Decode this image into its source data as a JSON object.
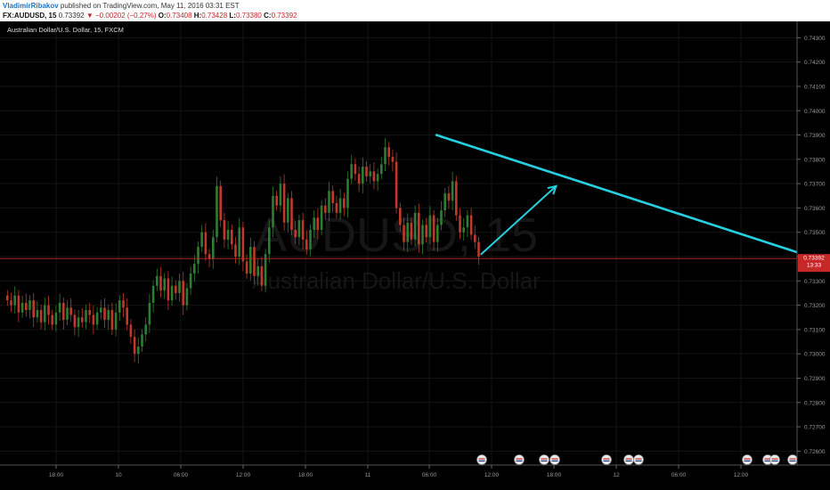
{
  "header": {
    "author": "VladimirRibakov",
    "published": "published on TradingView.com, May 11, 2016 03:31 EST",
    "symbol": "FX:AUDUSD, 15",
    "price": "0.73392",
    "change_arrow": "▼",
    "change": "−0.00202 (−0.27%)",
    "o_label": "O:",
    "o_val": "0.73408",
    "h_label": "H:",
    "h_val": "0.73428",
    "l_label": "L:",
    "l_val": "0.73380",
    "c_label": "C:",
    "c_val": "0.73392"
  },
  "chart_title": "Australian Dollar/U.S. Dollar, 15, FXCM",
  "watermark": {
    "line1": "AUDUSD, 15",
    "line2": "Australian Dollar/U.S. Dollar"
  },
  "price_tag": {
    "price": "0.73392",
    "countdown": "13:33"
  },
  "colors": {
    "up": "#2e7d32",
    "down": "#c0392b",
    "trendline": "#26d0e0",
    "price_line": "#c62828",
    "axis_text": "#9a9a9a"
  },
  "chart_data": {
    "type": "candlestick",
    "title": "Australian Dollar/U.S. Dollar, 15, FXCM",
    "ylim": [
      0.7255,
      0.7436
    ],
    "y_ticks": [
      "0.74300",
      "0.74200",
      "0.74100",
      "0.74000",
      "0.73900",
      "0.73800",
      "0.73700",
      "0.73600",
      "0.73500",
      "0.73400",
      "0.73300",
      "0.73200",
      "0.73100",
      "0.73000",
      "0.72900",
      "0.72800",
      "0.72700",
      "0.72600"
    ],
    "x_ticks": [
      "18:00",
      "10",
      "06:00",
      "12:00",
      "18:00",
      "11",
      "06:00",
      "12:00",
      "18:00",
      "12",
      "06:00",
      "12:00"
    ],
    "last_price": 0.73392,
    "series_close": [
      0.7322,
      0.732,
      0.7324,
      0.7317,
      0.7321,
      0.7318,
      0.7322,
      0.7315,
      0.7318,
      0.7313,
      0.732,
      0.7316,
      0.7312,
      0.7317,
      0.7321,
      0.7314,
      0.7319,
      0.7316,
      0.7311,
      0.7315,
      0.7313,
      0.7318,
      0.7316,
      0.7312,
      0.7317,
      0.7319,
      0.7314,
      0.7318,
      0.731,
      0.7317,
      0.7322,
      0.7319,
      0.7312,
      0.7307,
      0.73,
      0.7303,
      0.7308,
      0.7312,
      0.7321,
      0.7328,
      0.7332,
      0.7326,
      0.7331,
      0.7322,
      0.7328,
      0.7325,
      0.733,
      0.732,
      0.7327,
      0.7333,
      0.7337,
      0.7344,
      0.735,
      0.7341,
      0.7339,
      0.7348,
      0.7369,
      0.7355,
      0.7347,
      0.7351,
      0.7345,
      0.734,
      0.7352,
      0.7338,
      0.7333,
      0.7344,
      0.7332,
      0.7336,
      0.7328,
      0.7341,
      0.7352,
      0.7365,
      0.7361,
      0.737,
      0.7354,
      0.7364,
      0.7351,
      0.7348,
      0.7355,
      0.7347,
      0.7343,
      0.7351,
      0.7356,
      0.7351,
      0.7361,
      0.7358,
      0.7367,
      0.7362,
      0.7358,
      0.7364,
      0.736,
      0.7372,
      0.7378,
      0.7374,
      0.737,
      0.7377,
      0.7373,
      0.7375,
      0.7371,
      0.7374,
      0.7378,
      0.7385,
      0.7381,
      0.7379,
      0.736,
      0.7353,
      0.7346,
      0.7354,
      0.7347,
      0.7358,
      0.7345,
      0.7353,
      0.7348,
      0.7357,
      0.7346,
      0.7353,
      0.7359,
      0.7366,
      0.7363,
      0.7371,
      0.7357,
      0.735,
      0.7352,
      0.7357,
      0.7349,
      0.7346,
      0.734
    ],
    "annotations": [
      {
        "type": "trendline",
        "from": [
          115,
          0.739
        ],
        "to": [
          237,
          0.7329
        ]
      },
      {
        "type": "arrow",
        "from": [
          127,
          0.7341
        ],
        "to": [
          147,
          0.7369
        ]
      }
    ]
  }
}
